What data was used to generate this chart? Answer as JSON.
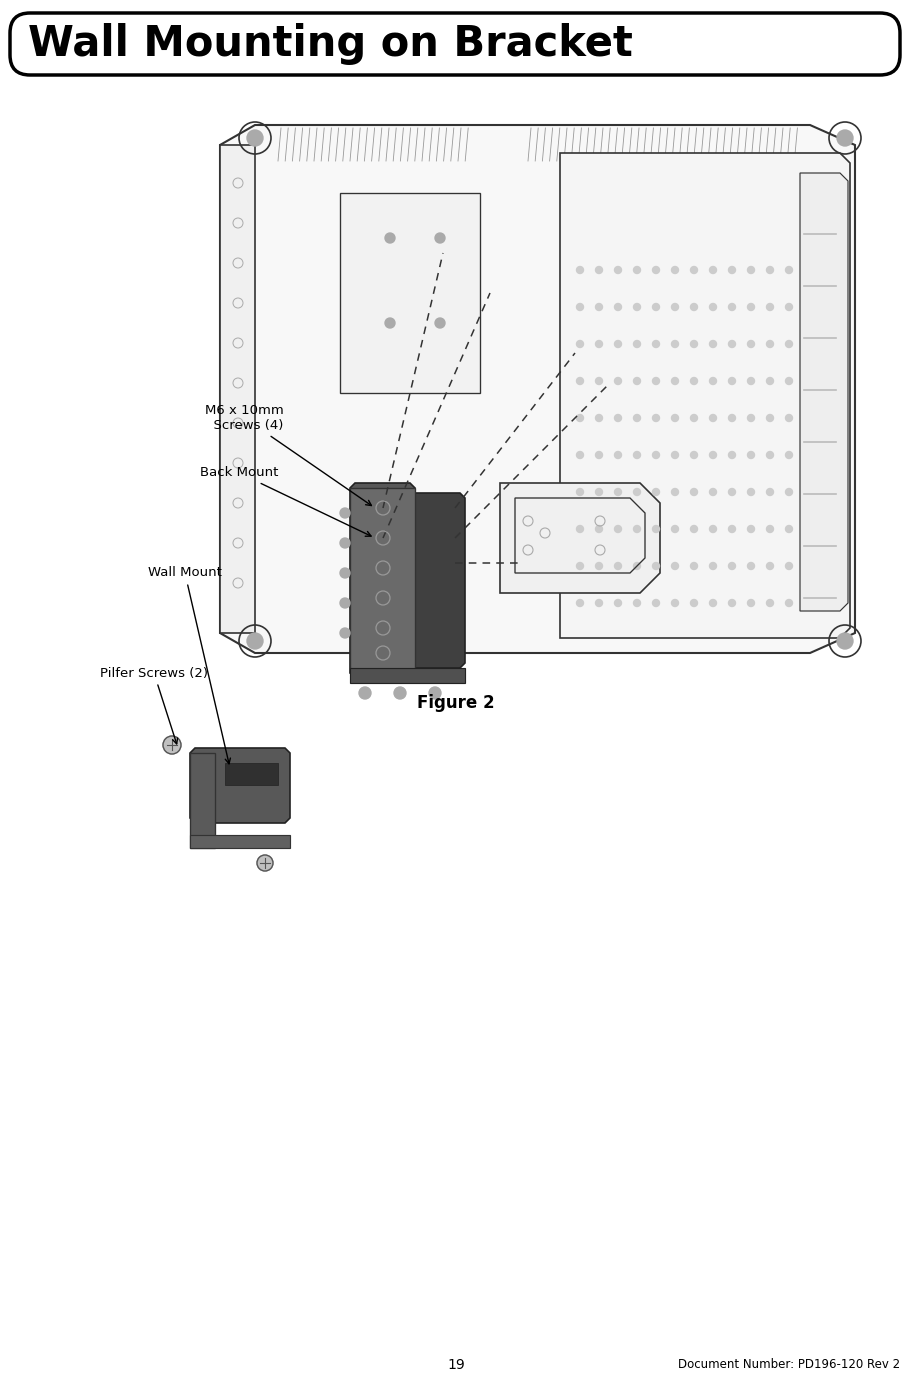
{
  "title": "Wall Mounting on Bracket",
  "page_number": "19",
  "doc_number": "Document Number: PD196-120 Rev 2",
  "figure_caption": "Figure 2",
  "bg_color": "#ffffff",
  "title_color": "#000000",
  "title_fontsize": 30,
  "lw": 1.2,
  "line_color": "#333333",
  "label_m6": "M6 x 10mm\n  Screws (4)",
  "label_back": "Back Mount",
  "label_wall": "Wall Mount",
  "label_pilfer": "Pilfer Screws (2)",
  "dark_fill": "#404040",
  "mid_fill": "#585858",
  "light_fill": "#f8f8f8",
  "vent_fill": "#eeeeee"
}
